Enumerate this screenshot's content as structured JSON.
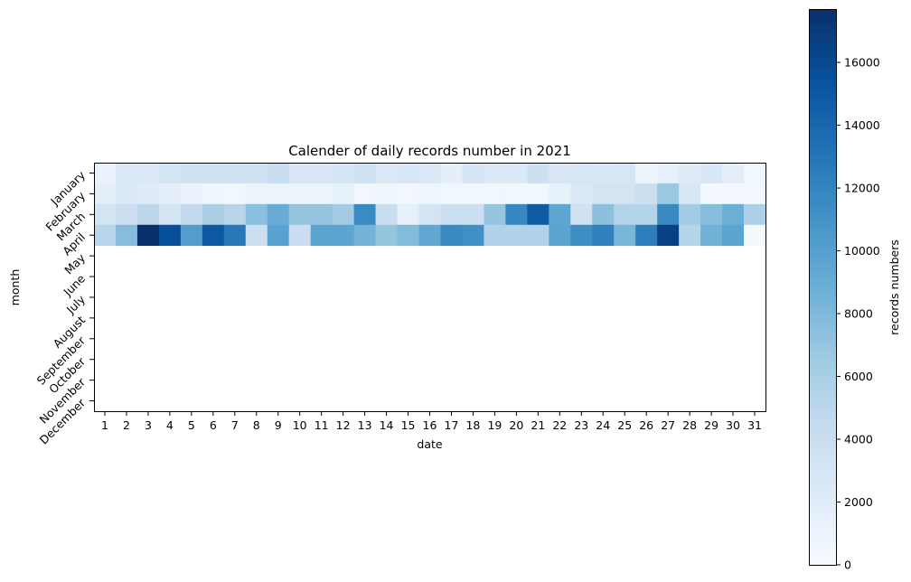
{
  "chart_data": {
    "type": "heatmap",
    "title": "Calender of daily records number in 2021",
    "xlabel": "date",
    "ylabel": "month",
    "x_categories": [
      "1",
      "2",
      "3",
      "4",
      "5",
      "6",
      "7",
      "8",
      "9",
      "10",
      "11",
      "12",
      "13",
      "14",
      "15",
      "16",
      "17",
      "18",
      "19",
      "20",
      "21",
      "22",
      "23",
      "24",
      "25",
      "26",
      "27",
      "28",
      "29",
      "30",
      "31"
    ],
    "y_categories": [
      "January",
      "February",
      "March",
      "April",
      "May",
      "June",
      "July",
      "August",
      "September",
      "October",
      "November",
      "December"
    ],
    "colorbar": {
      "label": "records numbers",
      "vmin": 0,
      "vmax": 17700,
      "ticks": [
        0,
        2000,
        4000,
        6000,
        8000,
        10000,
        12000,
        14000,
        16000
      ],
      "colormap": "Blues",
      "colors": [
        "#f7fbff",
        "#deebf7",
        "#c6dbef",
        "#9ecae1",
        "#6baed6",
        "#4292c6",
        "#2171b5",
        "#08519c",
        "#08306b"
      ]
    },
    "values": [
      [
        1200,
        2500,
        2500,
        3200,
        3500,
        3500,
        3500,
        3500,
        4200,
        2700,
        2700,
        3000,
        3500,
        2500,
        2800,
        2500,
        1600,
        3000,
        2500,
        2500,
        3800,
        2700,
        2900,
        2800,
        2900,
        900,
        1500,
        2200,
        2800,
        1800,
        600
      ],
      [
        1800,
        2600,
        2200,
        1600,
        1200,
        800,
        600,
        1000,
        1100,
        1100,
        1100,
        1400,
        500,
        700,
        500,
        800,
        600,
        600,
        600,
        600,
        600,
        1400,
        2500,
        3200,
        3200,
        3900,
        6800,
        2800,
        400,
        400,
        400
      ],
      [
        3200,
        3900,
        5000,
        3100,
        4600,
        6000,
        5200,
        7500,
        9000,
        7000,
        7000,
        6400,
        11500,
        4000,
        1500,
        3200,
        3800,
        3800,
        7000,
        11800,
        14800,
        9500,
        3500,
        7400,
        5400,
        5400,
        11600,
        6400,
        7700,
        8800,
        5800
      ],
      [
        5200,
        7700,
        17700,
        15600,
        10200,
        15000,
        12800,
        3800,
        9800,
        4000,
        9600,
        9600,
        8400,
        7000,
        7800,
        9300,
        11600,
        11200,
        5600,
        5600,
        5600,
        9600,
        11300,
        12200,
        8200,
        12400,
        16600,
        5400,
        8600,
        9600,
        300
      ],
      null,
      null,
      null,
      null,
      null,
      null,
      null,
      null
    ]
  }
}
